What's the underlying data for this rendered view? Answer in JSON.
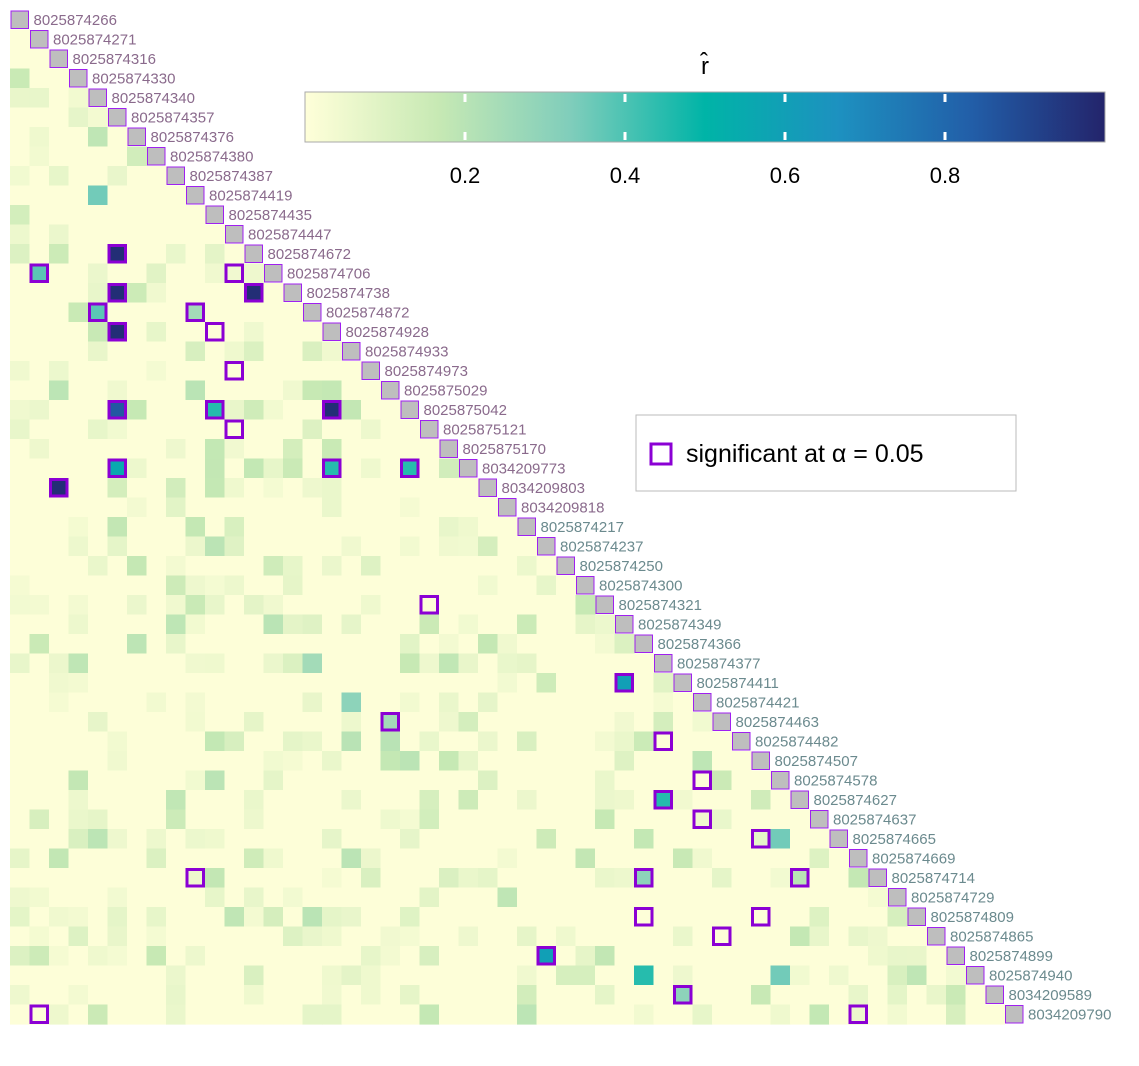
{
  "chart_data": {
    "type": "heatmap",
    "labels": [
      "8025874266",
      "8025874271",
      "8025874316",
      "8025874330",
      "8025874340",
      "8025874357",
      "8025874376",
      "8025874380",
      "8025874387",
      "8025874419",
      "8025874435",
      "8025874447",
      "8025874672",
      "8025874706",
      "8025874738",
      "8025874872",
      "8025874928",
      "8025874933",
      "8025874973",
      "8025875029",
      "8025875042",
      "8025875121",
      "8025875170",
      "8034209773",
      "8034209803",
      "8034209818",
      "8025874217",
      "8025874237",
      "8025874250",
      "8025874300",
      "8025874321",
      "8025874349",
      "8025874366",
      "8025874377",
      "8025874411",
      "8025874421",
      "8025874463",
      "8025874482",
      "8025874507",
      "8025874578",
      "8025874627",
      "8025874637",
      "8025874665",
      "8025874669",
      "8025874714",
      "8025874729",
      "8025874809",
      "8025874865",
      "8025874899",
      "8025874940",
      "8034209589",
      "8034209790"
    ],
    "label_groups": {
      "first_group_size": 26,
      "first_color": "#8a6a8c",
      "second_color": "#6b8a8e"
    },
    "colorscale": {
      "title": "r̂",
      "range": [
        0,
        1
      ],
      "ticks": [
        0.2,
        0.4,
        0.6,
        0.8
      ],
      "colors": [
        "#ffffd9",
        "#c7e9b4",
        "#7fcdbb",
        "#00b4a7",
        "#1d91c0",
        "#225ea8",
        "#23246b"
      ]
    },
    "cells": [
      [
        12,
        5,
        0.97
      ],
      [
        13,
        1,
        0.38
      ],
      [
        14,
        5,
        0.97
      ],
      [
        14,
        12,
        0.97
      ],
      [
        15,
        4,
        0.38
      ],
      [
        15,
        9,
        0.25
      ],
      [
        16,
        5,
        0.97
      ],
      [
        20,
        5,
        0.85
      ],
      [
        20,
        10,
        0.45
      ],
      [
        20,
        16,
        0.97
      ],
      [
        23,
        5,
        0.55
      ],
      [
        23,
        16,
        0.45
      ],
      [
        23,
        20,
        0.45
      ],
      [
        24,
        2,
        0.97
      ],
      [
        34,
        31,
        0.6
      ],
      [
        36,
        19,
        0.25
      ],
      [
        40,
        33,
        0.45
      ],
      [
        44,
        9,
        0.05
      ],
      [
        44,
        32,
        0.3
      ],
      [
        44,
        40,
        0.2
      ],
      [
        48,
        27,
        0.6
      ],
      [
        50,
        34,
        0.3
      ],
      [
        9,
        4,
        0.35
      ],
      [
        42,
        39,
        0.35
      ],
      [
        49,
        32,
        0.45
      ],
      [
        49,
        39,
        0.35
      ],
      [
        35,
        17,
        0.3
      ],
      [
        37,
        19,
        0.2
      ],
      [
        33,
        15,
        0.25
      ],
      [
        37,
        17,
        0.2
      ]
    ],
    "significant": [
      [
        12,
        5
      ],
      [
        13,
        1
      ],
      [
        13,
        11
      ],
      [
        14,
        5
      ],
      [
        14,
        12
      ],
      [
        15,
        4
      ],
      [
        15,
        9
      ],
      [
        16,
        5
      ],
      [
        16,
        10
      ],
      [
        18,
        11
      ],
      [
        20,
        5
      ],
      [
        20,
        10
      ],
      [
        20,
        16
      ],
      [
        21,
        11
      ],
      [
        23,
        5
      ],
      [
        23,
        16
      ],
      [
        23,
        20
      ],
      [
        24,
        2
      ],
      [
        30,
        21
      ],
      [
        34,
        31
      ],
      [
        36,
        19
      ],
      [
        37,
        33
      ],
      [
        39,
        35
      ],
      [
        40,
        33
      ],
      [
        41,
        35
      ],
      [
        42,
        38
      ],
      [
        44,
        9
      ],
      [
        44,
        32
      ],
      [
        44,
        40
      ],
      [
        46,
        32
      ],
      [
        46,
        38
      ],
      [
        47,
        36
      ],
      [
        48,
        27
      ],
      [
        50,
        34
      ],
      [
        51,
        1
      ],
      [
        51,
        43
      ]
    ],
    "significant_color": "#8b00d4",
    "legend": {
      "label": "significant at  α = 0.05",
      "position": "right"
    }
  }
}
